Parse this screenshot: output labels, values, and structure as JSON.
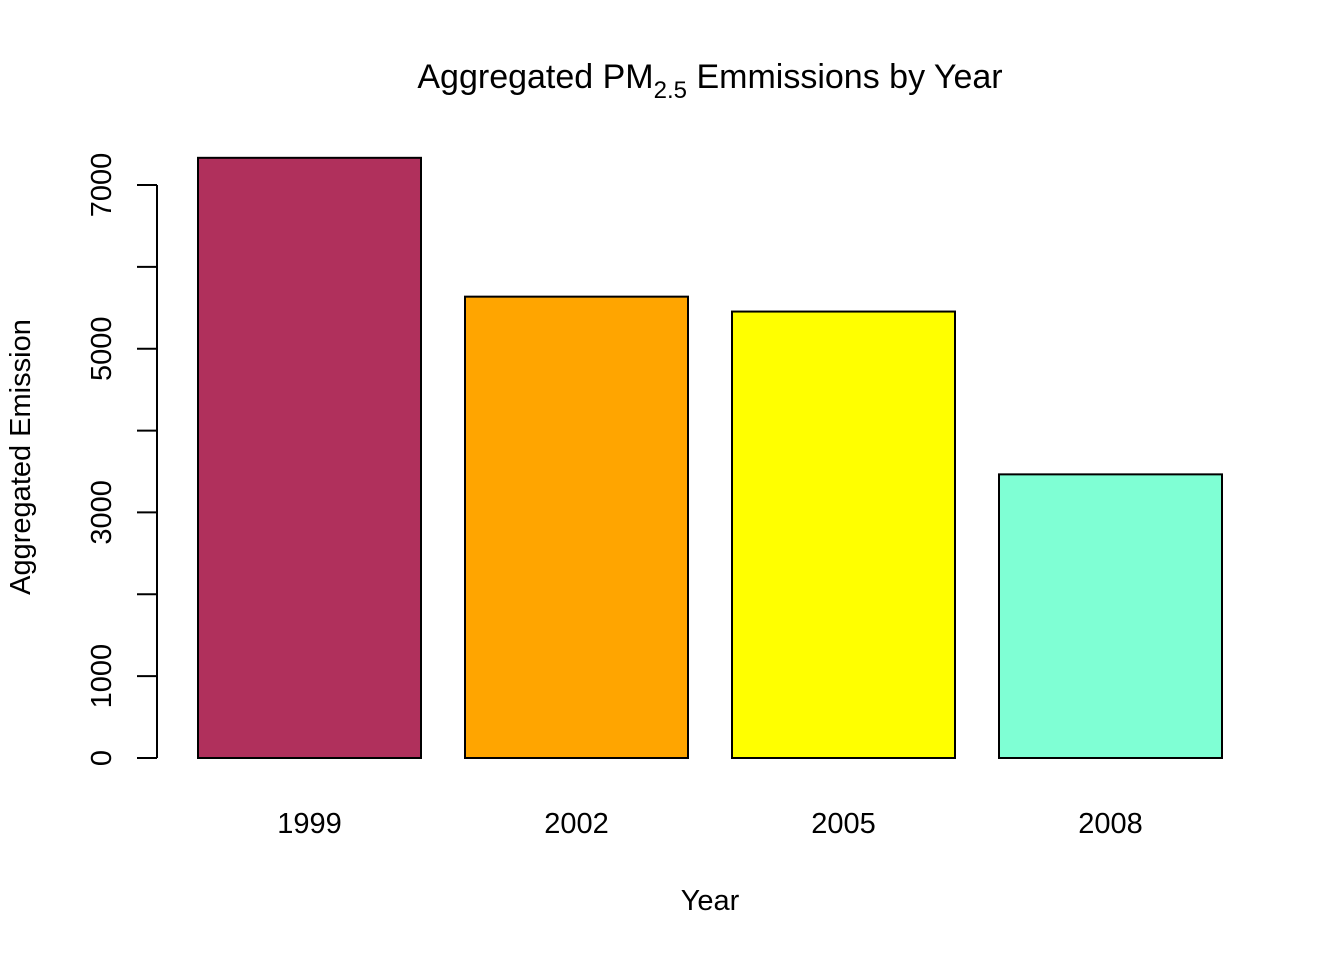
{
  "chart_data": {
    "type": "bar",
    "title": {
      "main": "Aggregated PM",
      "subscript": "2.5",
      "rest": " Emmissions by Year"
    },
    "xlabel": "Year",
    "ylabel": "Aggregated Emission",
    "categories": [
      "1999",
      "2002",
      "2005",
      "2008"
    ],
    "values": [
      7332,
      5636,
      5454,
      3465
    ],
    "colors": [
      "#B0305C",
      "#FFA500",
      "#FFFF00",
      "#7FFFD4"
    ],
    "ylim": [
      0,
      7350
    ],
    "yticks": [
      0,
      1000,
      2000,
      3000,
      4000,
      5000,
      6000,
      7000
    ],
    "ytick_labels": [
      "0",
      "1000",
      "",
      "3000",
      "",
      "5000",
      "",
      "7000"
    ],
    "grid": false,
    "legend": "none"
  }
}
